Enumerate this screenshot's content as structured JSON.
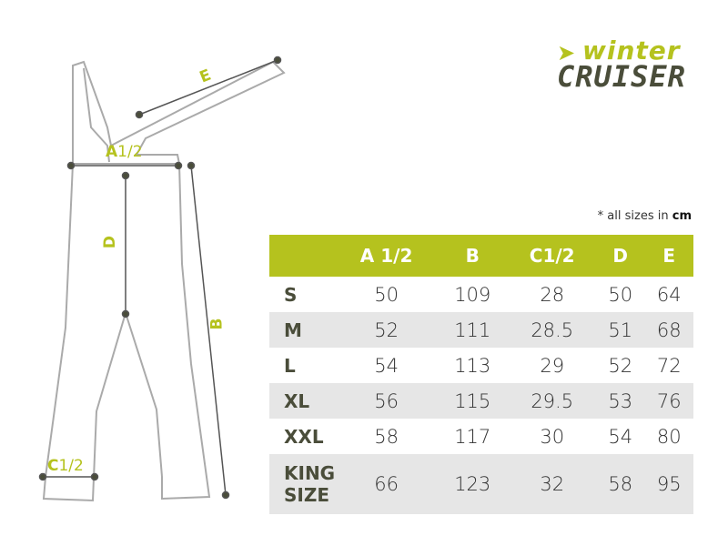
{
  "logo": {
    "line1": "winter",
    "line2": "CRUISER",
    "text": "winter CRUISER"
  },
  "diagram_labels": {
    "a": "A",
    "a_suffix": "1/2",
    "b": "B",
    "c": "C",
    "c_suffix": "1/2",
    "d": "D",
    "e": "E"
  },
  "note": {
    "prefix": "* all sizes in ",
    "unit": "cm"
  },
  "colors": {
    "accent": "#b5c21e",
    "dark": "#4a4d3a",
    "row_alt": "#e6e6e6"
  },
  "table": {
    "headers": [
      "",
      "A 1/2",
      "B",
      "C1/2",
      "D",
      "E"
    ],
    "rows": [
      {
        "size": "S",
        "values": [
          "50",
          "109",
          "28",
          "50",
          "64"
        ]
      },
      {
        "size": "M",
        "values": [
          "52",
          "111",
          "28.5",
          "51",
          "68"
        ]
      },
      {
        "size": "L",
        "values": [
          "54",
          "113",
          "29",
          "52",
          "72"
        ]
      },
      {
        "size": "XL",
        "values": [
          "56",
          "115",
          "29.5",
          "53",
          "76"
        ]
      },
      {
        "size": "XXL",
        "values": [
          "58",
          "117",
          "30",
          "54",
          "80"
        ]
      },
      {
        "size": "KING SIZE",
        "values": [
          "66",
          "123",
          "32",
          "58",
          "95"
        ]
      }
    ]
  }
}
